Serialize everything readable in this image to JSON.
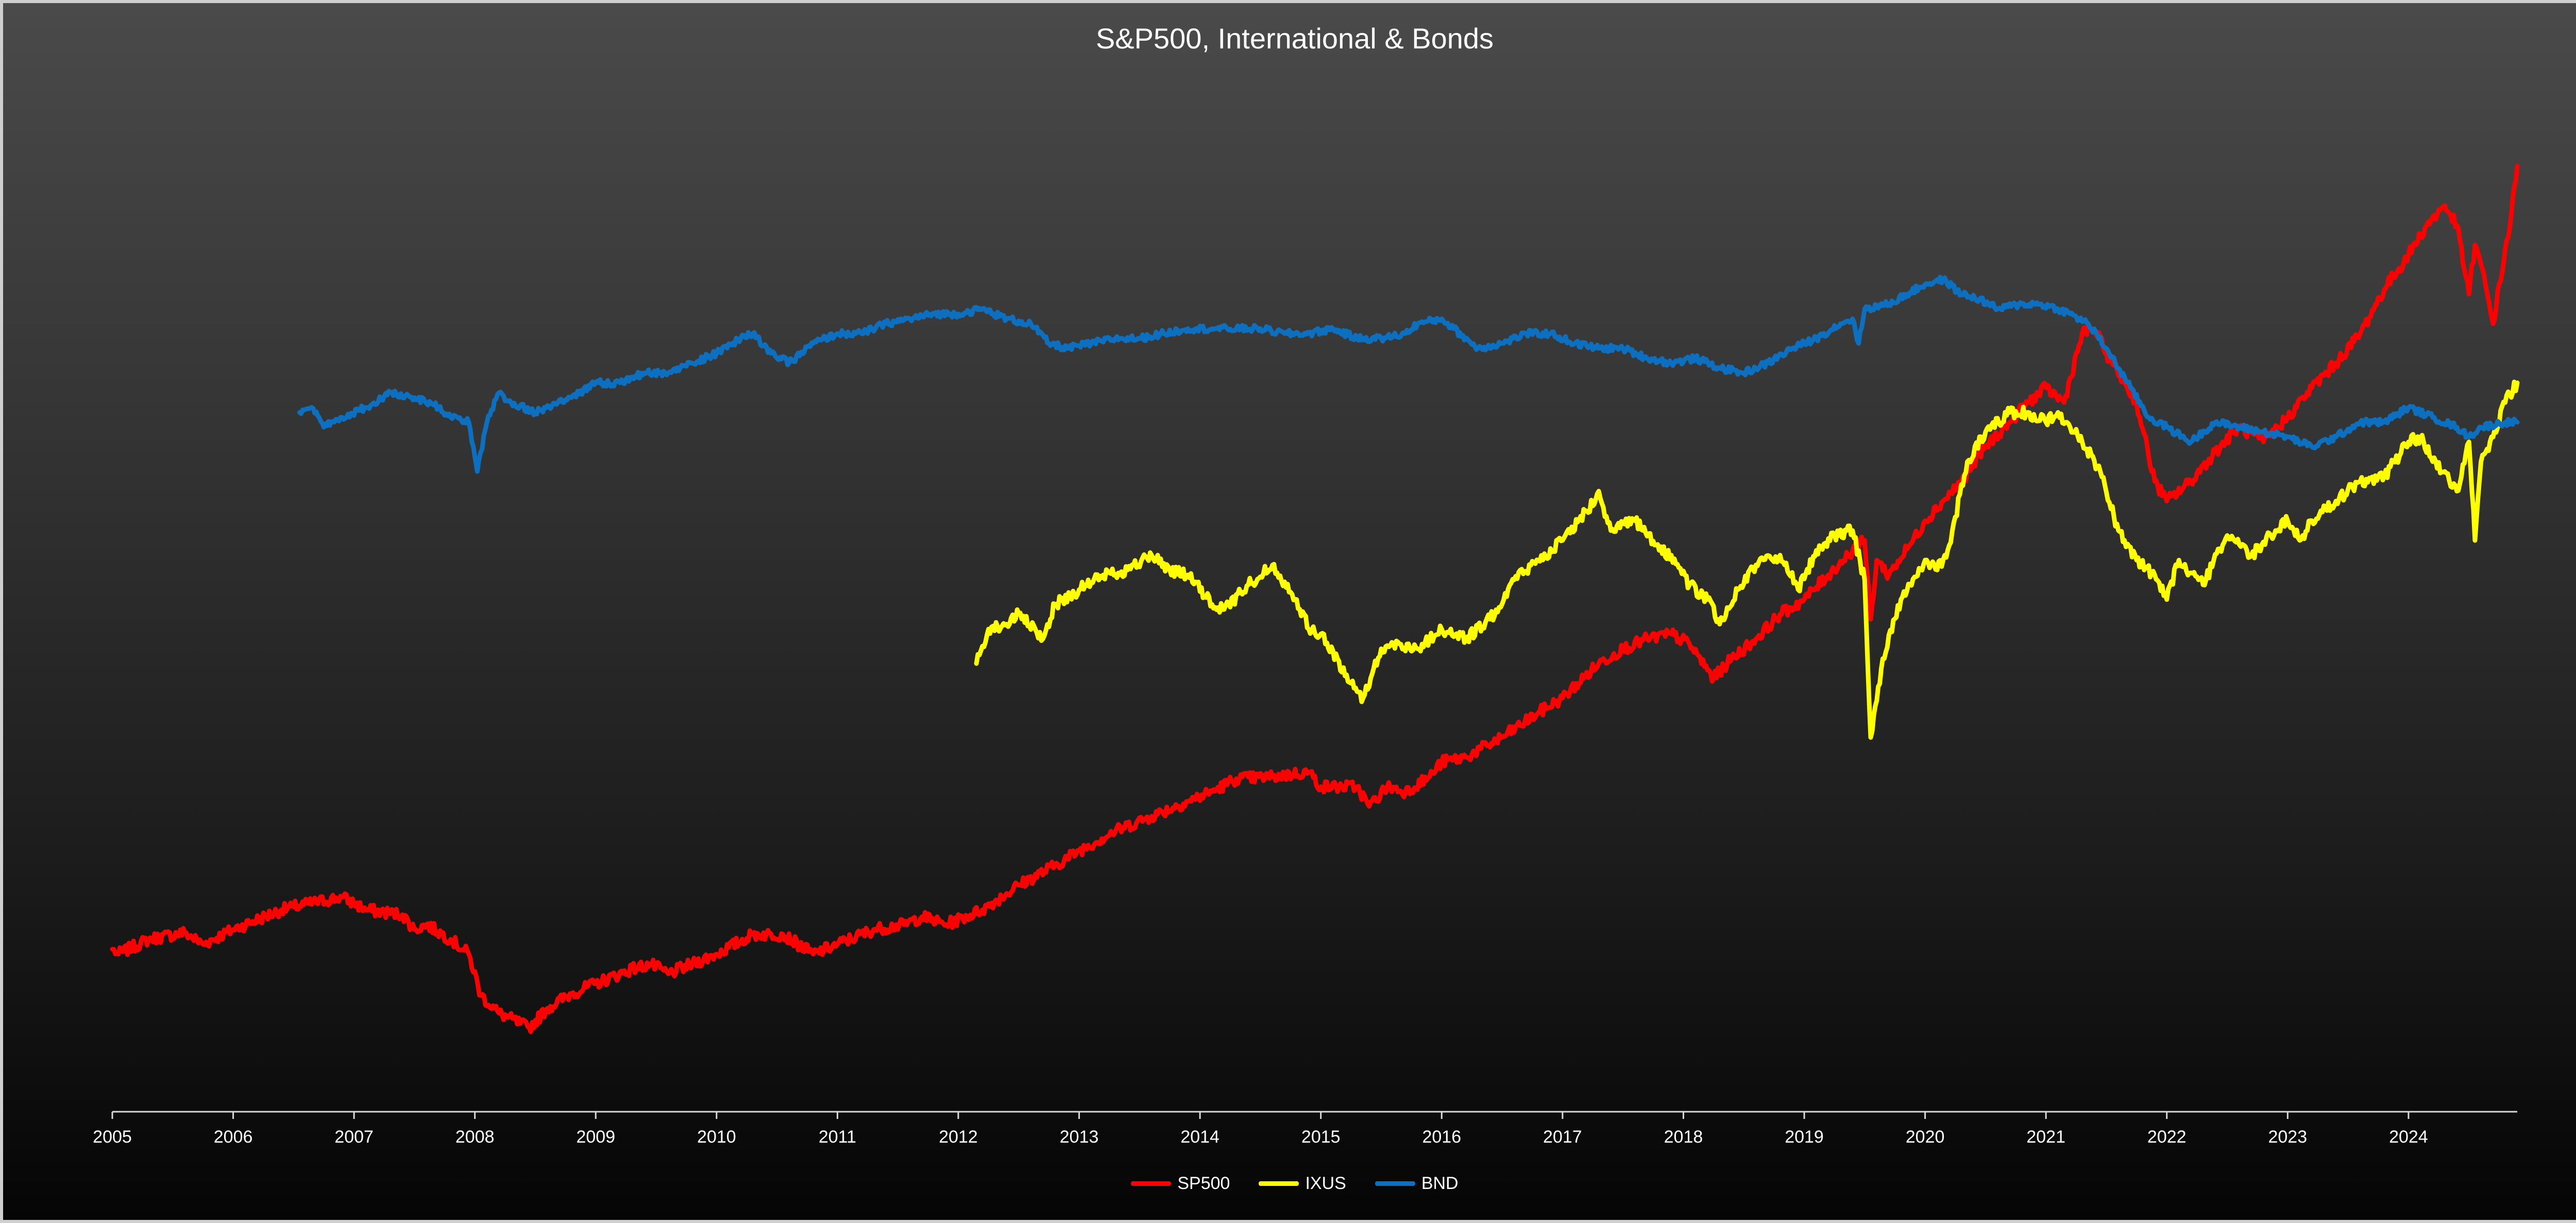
{
  "chart_data": {
    "type": "line",
    "title": "S&P500, International & Bonds",
    "xlabel": "",
    "ylabel": "",
    "x_ticks": [
      "2005",
      "2006",
      "2007",
      "2008",
      "2009",
      "2010",
      "2011",
      "2012",
      "2013",
      "2014",
      "2015",
      "2016",
      "2017",
      "2018",
      "2019",
      "2020",
      "2021",
      "2022",
      "2023",
      "2024"
    ],
    "x_range": [
      2005.0,
      2024.9
    ],
    "y_range": [
      0,
      100
    ],
    "y_axis_shown": false,
    "grid": false,
    "legend_position": "bottom-center",
    "series": [
      {
        "name": "SP500",
        "color": "#ff0000",
        "x": [
          2005.0,
          2005.05,
          2005.3,
          2005.6,
          2005.75,
          2006.0,
          2006.4,
          2006.5,
          2006.9,
          2007.1,
          2007.4,
          2007.5,
          2007.6,
          2007.8,
          2007.95,
          2008.05,
          2008.2,
          2008.45,
          2008.6,
          2008.8,
          2009.0,
          2009.3,
          2009.45,
          2009.6,
          2009.8,
          2010.0,
          2010.3,
          2010.55,
          2010.8,
          2011.0,
          2011.3,
          2011.55,
          2011.7,
          2011.9,
          2012.2,
          2012.5,
          2012.8,
          2013.0,
          2013.3,
          2013.6,
          2013.9,
          2014.1,
          2014.3,
          2014.6,
          2014.9,
          2015.0,
          2015.3,
          2015.4,
          2015.55,
          2015.7,
          2015.9,
          2016.0,
          2016.2,
          2016.5,
          2016.8,
          2017.0,
          2017.3,
          2017.5,
          2017.7,
          2017.9,
          2018.05,
          2018.25,
          2018.4,
          2018.6,
          2018.8,
          2019.0,
          2019.2,
          2019.4,
          2019.5,
          2019.55,
          2019.6,
          2019.7,
          2019.9,
          2020.0,
          2020.3,
          2020.5,
          2020.7,
          2020.85,
          2021.0,
          2021.15,
          2021.3,
          2021.4,
          2021.5,
          2021.65,
          2021.75,
          2021.9,
          2022.0,
          2022.2,
          2022.4,
          2022.6,
          2022.8,
          2023.0,
          2023.2,
          2023.4,
          2023.6,
          2023.8,
          2024.0,
          2024.15,
          2024.3,
          2024.4,
          2024.5,
          2024.55,
          2024.6,
          2024.7,
          2024.85,
          2024.9
        ],
        "y": [
          16.5,
          16.0,
          17.5,
          18.2,
          17.0,
          18.5,
          20.5,
          20.8,
          21.8,
          20.5,
          20.0,
          18.5,
          19.0,
          17.5,
          16.0,
          11.8,
          10.0,
          8.5,
          10.5,
          12.0,
          13.0,
          14.5,
          15.0,
          14.0,
          15.0,
          16.0,
          18.0,
          18.0,
          16.0,
          17.0,
          18.5,
          19.0,
          19.8,
          19.0,
          20.5,
          23.0,
          25.0,
          26.5,
          28.5,
          30.0,
          31.5,
          32.5,
          33.8,
          34.0,
          34.5,
          33.0,
          33.0,
          31.0,
          33.0,
          32.5,
          34.0,
          35.5,
          36.0,
          38.0,
          40.5,
          42.0,
          45.5,
          47.0,
          48.0,
          48.5,
          47.5,
          44.0,
          46.0,
          48.0,
          50.5,
          52.0,
          54.5,
          57.0,
          58.0,
          50.0,
          56.0,
          54.5,
          58.0,
          60.0,
          64.0,
          67.5,
          70.0,
          72.0,
          73.5,
          72.0,
          79.0,
          79.5,
          77.0,
          74.0,
          72.0,
          64.0,
          62.0,
          64.0,
          67.0,
          69.5,
          68.0,
          70.5,
          73.5,
          76.0,
          79.0,
          83.5,
          87.0,
          90.0,
          92.0,
          90.0,
          83.0,
          88.0,
          86.0,
          80.0,
          91.0,
          96.0
        ]
      },
      {
        "name": "IXUS",
        "color": "#ffff00",
        "x": [
          2012.15,
          2012.25,
          2012.4,
          2012.5,
          2012.7,
          2012.8,
          2013.0,
          2013.2,
          2013.4,
          2013.6,
          2013.75,
          2013.9,
          2014.1,
          2014.2,
          2014.4,
          2014.6,
          2014.8,
          2014.9,
          2015.0,
          2015.25,
          2015.35,
          2015.5,
          2015.65,
          2015.8,
          2016.0,
          2016.2,
          2016.4,
          2016.6,
          2016.8,
          2017.0,
          2017.2,
          2017.3,
          2017.4,
          2017.6,
          2017.8,
          2017.9,
          2018.05,
          2018.2,
          2018.3,
          2018.45,
          2018.6,
          2018.8,
          2018.95,
          2019.1,
          2019.25,
          2019.4,
          2019.5,
          2019.55,
          2019.65,
          2019.8,
          2020.0,
          2020.1,
          2020.2,
          2020.35,
          2020.5,
          2020.7,
          2020.85,
          2021.0,
          2021.1,
          2021.2,
          2021.3,
          2021.45,
          2021.6,
          2021.75,
          2021.9,
          2022.0,
          2022.1,
          2022.3,
          2022.5,
          2022.7,
          2022.9,
          2023.0,
          2023.1,
          2023.2,
          2023.4,
          2023.6,
          2023.8,
          2024.0,
          2024.1,
          2024.2,
          2024.3,
          2024.4,
          2024.5,
          2024.55,
          2024.6,
          2024.7,
          2024.8,
          2024.9
        ],
        "y": [
          45.5,
          49.0,
          49.5,
          50.5,
          48.0,
          51.5,
          53.0,
          54.5,
          55.0,
          56.5,
          55.0,
          54.5,
          51.5,
          51.0,
          53.5,
          55.5,
          52.0,
          49.0,
          48.5,
          43.5,
          42.0,
          47.0,
          47.5,
          47.0,
          49.0,
          48.0,
          50.0,
          54.0,
          56.0,
          58.0,
          61.0,
          63.0,
          59.0,
          60.0,
          57.0,
          56.5,
          53.5,
          52.0,
          49.5,
          53.0,
          55.5,
          56.5,
          53.0,
          57.0,
          58.5,
          59.0,
          54.0,
          38.0,
          46.0,
          52.0,
          56.0,
          55.0,
          57.5,
          66.0,
          69.0,
          71.0,
          71.0,
          70.0,
          71.0,
          69.5,
          68.0,
          65.0,
          59.0,
          56.0,
          54.5,
          52.0,
          56.0,
          53.5,
          58.5,
          56.5,
          59.0,
          60.0,
          58.0,
          60.0,
          62.0,
          64.0,
          64.5,
          68.0,
          68.5,
          66.0,
          65.0,
          63.0,
          68.0,
          58.0,
          66.0,
          68.5,
          72.0,
          74.0
        ]
      },
      {
        "name": "BND",
        "color": "#0d6fbf",
        "x": [
          2006.55,
          2006.65,
          2006.75,
          2006.9,
          2007.1,
          2007.3,
          2007.5,
          2007.7,
          2007.8,
          2007.95,
          2008.0,
          2008.02,
          2008.1,
          2008.2,
          2008.3,
          2008.5,
          2008.8,
          2009.0,
          2009.2,
          2009.4,
          2009.6,
          2009.8,
          2010.0,
          2010.2,
          2010.3,
          2010.45,
          2010.6,
          2010.8,
          2011.0,
          2011.2,
          2011.4,
          2011.6,
          2011.8,
          2012.0,
          2012.2,
          2012.4,
          2012.6,
          2012.75,
          2012.9,
          2013.1,
          2013.3,
          2013.5,
          2013.7,
          2013.9,
          2014.1,
          2014.3,
          2014.5,
          2014.7,
          2014.9,
          2015.1,
          2015.3,
          2015.5,
          2015.7,
          2015.8,
          2016.0,
          2016.1,
          2016.3,
          2016.5,
          2016.7,
          2016.9,
          2017.1,
          2017.3,
          2017.5,
          2017.7,
          2017.9,
          2018.1,
          2018.3,
          2018.5,
          2018.7,
          2018.9,
          2019.1,
          2019.3,
          2019.4,
          2019.45,
          2019.5,
          2019.7,
          2019.85,
          2020.0,
          2020.15,
          2020.3,
          2020.45,
          2020.6,
          2020.8,
          2020.95,
          2021.1,
          2021.2,
          2021.35,
          2021.5,
          2021.7,
          2021.85,
          2022.0,
          2022.2,
          2022.4,
          2022.6,
          2022.8,
          2023.0,
          2023.2,
          2023.4,
          2023.6,
          2023.8,
          2024.0,
          2024.2,
          2024.4,
          2024.5,
          2024.6,
          2024.8,
          2024.9
        ],
        "y": [
          71.0,
          71.5,
          69.5,
          70.5,
          71.5,
          73.0,
          72.5,
          71.5,
          70.5,
          70.0,
          66.5,
          65.0,
          70.0,
          73.0,
          72.0,
          71.0,
          72.5,
          74.0,
          74.0,
          75.0,
          75.0,
          76.0,
          77.0,
          78.5,
          79.0,
          77.0,
          76.0,
          78.0,
          79.0,
          79.0,
          80.0,
          80.5,
          81.0,
          81.0,
          81.5,
          80.5,
          80.0,
          78.0,
          77.5,
          78.0,
          78.5,
          78.5,
          79.0,
          79.5,
          79.5,
          79.5,
          79.5,
          79.0,
          79.0,
          79.5,
          78.5,
          78.5,
          79.0,
          80.0,
          80.5,
          79.5,
          77.5,
          78.0,
          79.0,
          79.0,
          78.0,
          77.5,
          77.5,
          76.5,
          76.0,
          76.5,
          75.5,
          75.0,
          76.0,
          77.5,
          78.5,
          80.0,
          80.5,
          78.0,
          81.5,
          82.0,
          83.0,
          84.0,
          84.5,
          83.0,
          82.5,
          81.5,
          82.0,
          82.0,
          81.5,
          81.0,
          80.0,
          77.5,
          73.5,
          70.5,
          69.5,
          68.0,
          70.0,
          69.5,
          69.0,
          68.5,
          67.5,
          68.5,
          70.0,
          70.0,
          71.5,
          70.5,
          69.5,
          68.5,
          69.5,
          70.0,
          70.0
        ]
      }
    ]
  }
}
